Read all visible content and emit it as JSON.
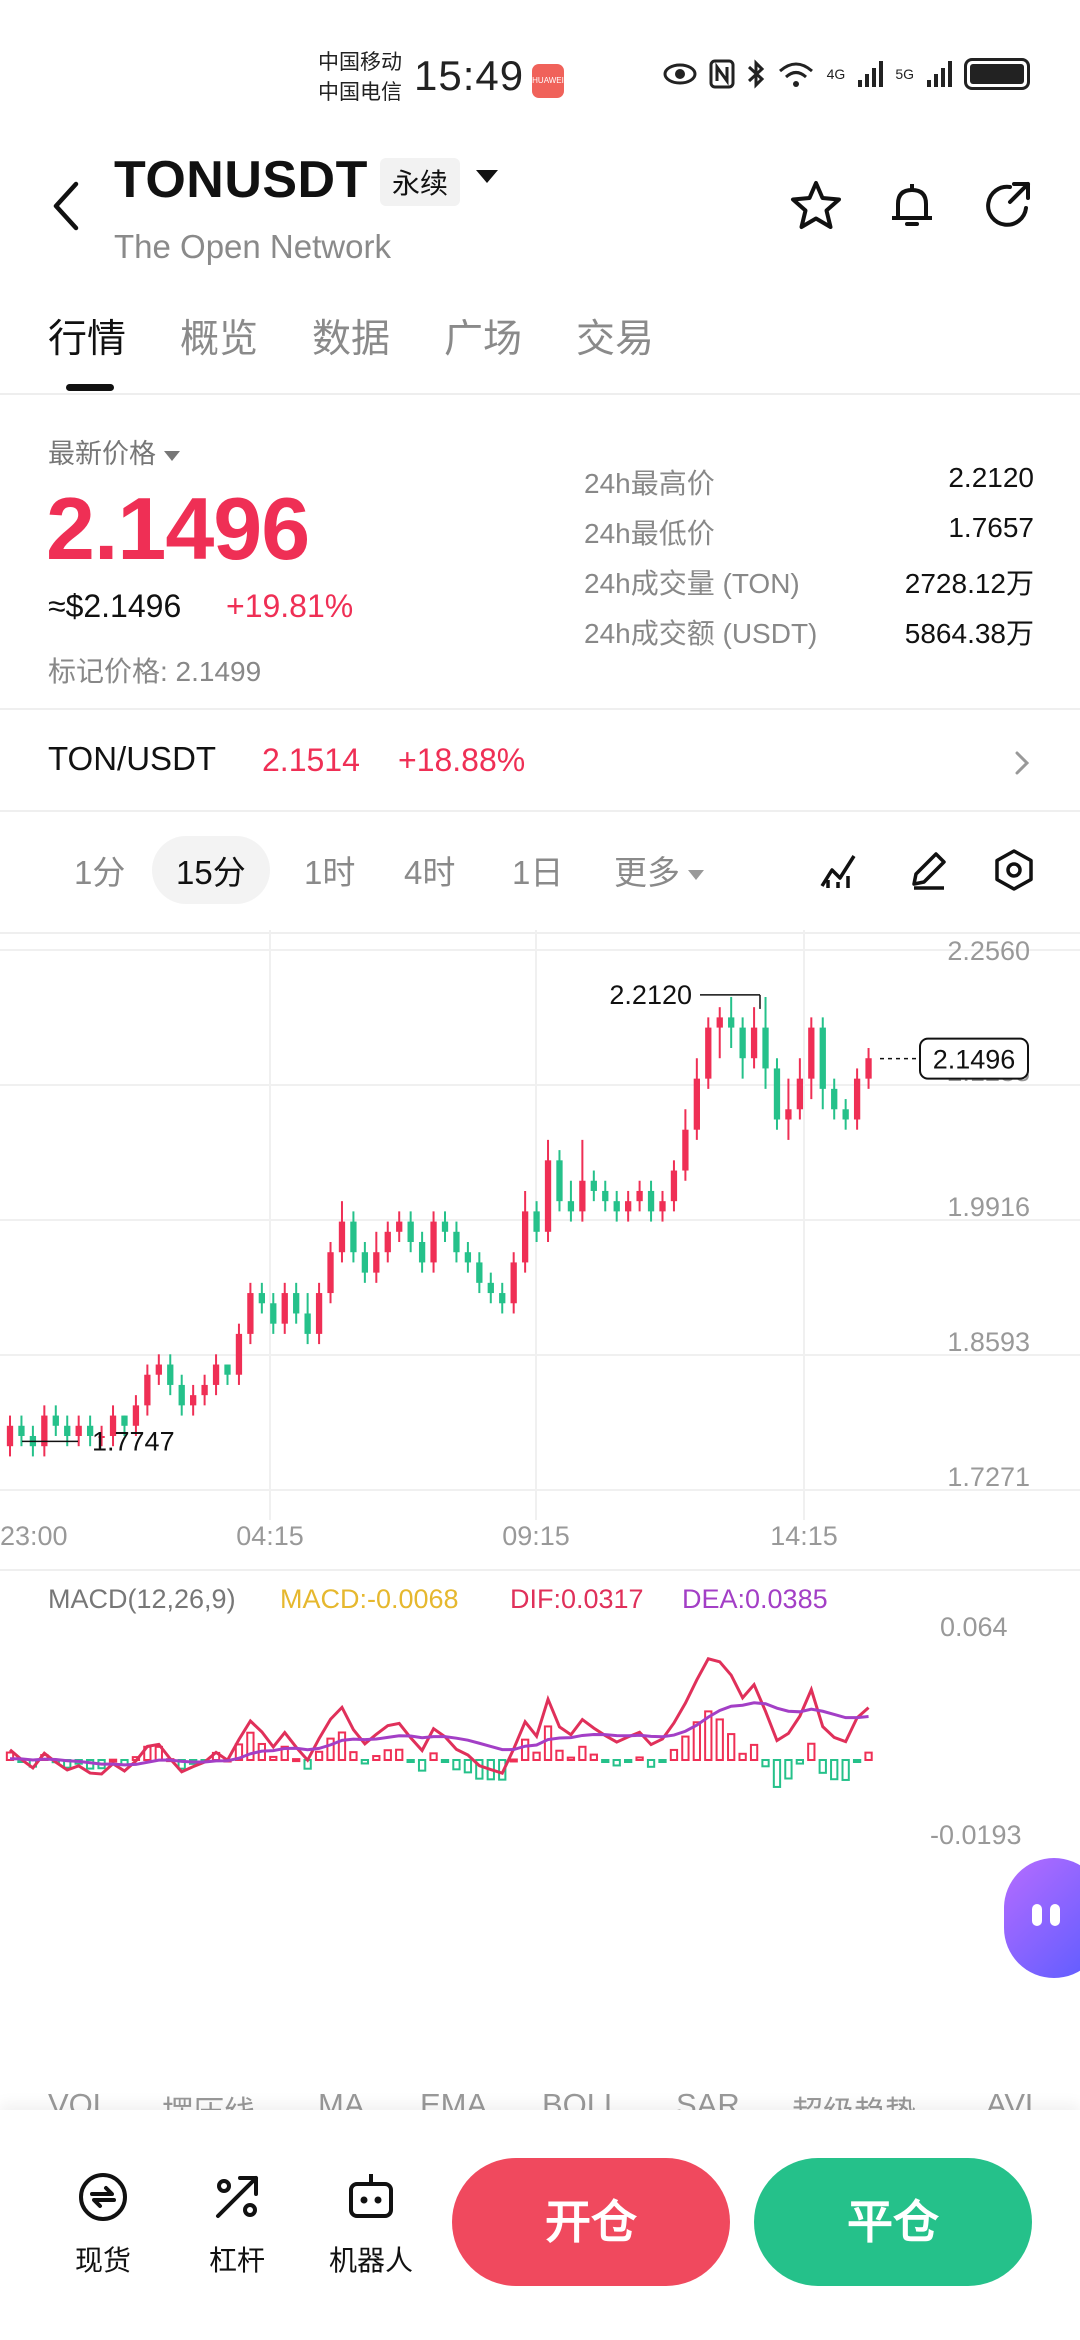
{
  "status_bar": {
    "carrier1": "中国移动",
    "carrier2": "中国电信",
    "time": "15:49",
    "huawei_badge": "HUAWEI",
    "network": "5G",
    "network2": "4G"
  },
  "header": {
    "symbol": "TONUSDT",
    "contract_type": "永续",
    "name": "The Open Network",
    "icons": [
      "back-arrow-icon",
      "star-icon",
      "bell-icon",
      "share-icon"
    ]
  },
  "tabs": [
    "行情",
    "概览",
    "数据",
    "广场",
    "交易"
  ],
  "price": {
    "latest_label": "最新价格",
    "last": "2.1496",
    "usd": "≈$2.1496",
    "change": "+19.81%",
    "mark_price": "标记价格: 2.1499",
    "stats": [
      {
        "label": "24h最高价",
        "value": "2.2120"
      },
      {
        "label": "24h最低价",
        "value": "1.7657"
      },
      {
        "label": "24h成交量 (TON)",
        "value": "2728.12万"
      },
      {
        "label": "24h成交额 (USDT)",
        "value": "5864.38万"
      }
    ]
  },
  "spot_pair": {
    "pair": "TON/USDT",
    "price": "2.1514",
    "change": "+18.88%"
  },
  "intervals": [
    "1分",
    "15分",
    "1时",
    "4时",
    "1日",
    "更多"
  ],
  "selected_interval": "15分",
  "chart_data": {
    "type": "candlestick",
    "y_ticks": [
      "2.2560",
      "2.1238",
      "1.9916",
      "1.8593",
      "1.7271"
    ],
    "x_ticks": [
      "23:00",
      "04:15",
      "09:15",
      "14:15"
    ],
    "high_label": "2.2120",
    "low_label": "1.7747",
    "current_price_label": "2.1496",
    "ylim": [
      1.7271,
      2.256
    ],
    "candles": [
      [
        1.77,
        1.79,
        1.8,
        1.76
      ],
      [
        1.79,
        1.78,
        1.8,
        1.77
      ],
      [
        1.78,
        1.77,
        1.79,
        1.76
      ],
      [
        1.77,
        1.8,
        1.81,
        1.76
      ],
      [
        1.8,
        1.79,
        1.81,
        1.78
      ],
      [
        1.79,
        1.78,
        1.8,
        1.77
      ],
      [
        1.78,
        1.79,
        1.8,
        1.77
      ],
      [
        1.79,
        1.78,
        1.8,
        1.77
      ],
      [
        1.78,
        1.78,
        1.79,
        1.77
      ],
      [
        1.78,
        1.8,
        1.81,
        1.77
      ],
      [
        1.8,
        1.79,
        1.8,
        1.78
      ],
      [
        1.79,
        1.81,
        1.82,
        1.78
      ],
      [
        1.81,
        1.84,
        1.85,
        1.8
      ],
      [
        1.84,
        1.85,
        1.86,
        1.83
      ],
      [
        1.85,
        1.83,
        1.86,
        1.82
      ],
      [
        1.83,
        1.81,
        1.84,
        1.8
      ],
      [
        1.81,
        1.82,
        1.83,
        1.8
      ],
      [
        1.82,
        1.83,
        1.84,
        1.81
      ],
      [
        1.83,
        1.85,
        1.86,
        1.82
      ],
      [
        1.85,
        1.84,
        1.85,
        1.83
      ],
      [
        1.84,
        1.88,
        1.89,
        1.83
      ],
      [
        1.88,
        1.92,
        1.93,
        1.87
      ],
      [
        1.92,
        1.91,
        1.93,
        1.9
      ],
      [
        1.91,
        1.89,
        1.92,
        1.88
      ],
      [
        1.89,
        1.92,
        1.93,
        1.88
      ],
      [
        1.92,
        1.9,
        1.93,
        1.89
      ],
      [
        1.9,
        1.88,
        1.92,
        1.87
      ],
      [
        1.88,
        1.92,
        1.93,
        1.87
      ],
      [
        1.92,
        1.96,
        1.97,
        1.91
      ],
      [
        1.96,
        1.99,
        2.01,
        1.95
      ],
      [
        1.99,
        1.96,
        2.0,
        1.95
      ],
      [
        1.96,
        1.94,
        1.97,
        1.93
      ],
      [
        1.94,
        1.96,
        1.98,
        1.93
      ],
      [
        1.96,
        1.98,
        1.99,
        1.95
      ],
      [
        1.98,
        1.99,
        2.0,
        1.97
      ],
      [
        1.99,
        1.97,
        2.0,
        1.96
      ],
      [
        1.97,
        1.95,
        1.98,
        1.94
      ],
      [
        1.95,
        1.99,
        2.0,
        1.94
      ],
      [
        1.99,
        1.98,
        2.0,
        1.97
      ],
      [
        1.98,
        1.96,
        1.99,
        1.95
      ],
      [
        1.96,
        1.95,
        1.97,
        1.94
      ],
      [
        1.95,
        1.93,
        1.96,
        1.92
      ],
      [
        1.93,
        1.92,
        1.94,
        1.91
      ],
      [
        1.92,
        1.91,
        1.93,
        1.9
      ],
      [
        1.91,
        1.95,
        1.96,
        1.9
      ],
      [
        1.95,
        2.0,
        2.02,
        1.94
      ],
      [
        2.0,
        1.98,
        2.01,
        1.97
      ],
      [
        1.98,
        2.05,
        2.07,
        1.97
      ],
      [
        2.05,
        2.01,
        2.06,
        2.0
      ],
      [
        2.01,
        2.0,
        2.03,
        1.99
      ],
      [
        2.0,
        2.03,
        2.07,
        1.99
      ],
      [
        2.03,
        2.02,
        2.04,
        2.01
      ],
      [
        2.02,
        2.01,
        2.03,
        2.0
      ],
      [
        2.01,
        2.0,
        2.02,
        1.99
      ],
      [
        2.0,
        2.01,
        2.02,
        1.99
      ],
      [
        2.01,
        2.02,
        2.03,
        2.0
      ],
      [
        2.02,
        2.0,
        2.03,
        1.99
      ],
      [
        2.0,
        2.01,
        2.02,
        1.99
      ],
      [
        2.01,
        2.04,
        2.05,
        2.0
      ],
      [
        2.04,
        2.08,
        2.1,
        2.03
      ],
      [
        2.08,
        2.13,
        2.15,
        2.07
      ],
      [
        2.13,
        2.18,
        2.19,
        2.12
      ],
      [
        2.18,
        2.19,
        2.2,
        2.15
      ],
      [
        2.19,
        2.18,
        2.21,
        2.16
      ],
      [
        2.18,
        2.15,
        2.19,
        2.13
      ],
      [
        2.15,
        2.18,
        2.2,
        2.14
      ],
      [
        2.18,
        2.14,
        2.21,
        2.12
      ],
      [
        2.14,
        2.09,
        2.15,
        2.08
      ],
      [
        2.09,
        2.1,
        2.13,
        2.07
      ],
      [
        2.1,
        2.13,
        2.15,
        2.09
      ],
      [
        2.13,
        2.18,
        2.19,
        2.11
      ],
      [
        2.18,
        2.12,
        2.19,
        2.1
      ],
      [
        2.12,
        2.1,
        2.13,
        2.09
      ],
      [
        2.1,
        2.09,
        2.11,
        2.08
      ],
      [
        2.09,
        2.13,
        2.14,
        2.08
      ],
      [
        2.13,
        2.15,
        2.16,
        2.12
      ]
    ]
  },
  "macd": {
    "label": "MACD(12,26,9)",
    "macd": "MACD:-0.0068",
    "dif": "DIF:0.0317",
    "dea": "DEA:0.0385",
    "y_top": "0.064",
    "y_bottom": "-0.0193",
    "dif_color": "#e0305a",
    "dea_color": "#a33fc6"
  },
  "indicators": [
    "VOL",
    "摆压线",
    "MA",
    "EMA",
    "BOLL",
    "SAR",
    "超级趋势",
    "AVL"
  ],
  "bottom_nav": [
    {
      "label": "现货",
      "icon": "spot-icon"
    },
    {
      "label": "杠杆",
      "icon": "leverage-icon"
    },
    {
      "label": "机器人",
      "icon": "robot-icon"
    }
  ],
  "actions": {
    "open": "开仓",
    "close": "平仓"
  },
  "colors": {
    "up": "#ef2f55",
    "down": "#25c18a",
    "accent": "#111111"
  }
}
